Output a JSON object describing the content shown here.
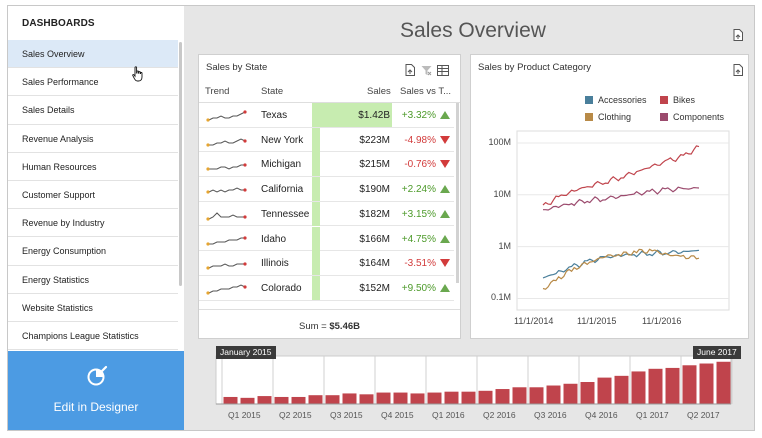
{
  "sidebar": {
    "title": "DASHBOARDS",
    "items": [
      {
        "label": "Sales Overview",
        "selected": true
      },
      {
        "label": "Sales Performance",
        "selected": false
      },
      {
        "label": "Sales Details",
        "selected": false
      },
      {
        "label": "Revenue Analysis",
        "selected": false
      },
      {
        "label": "Human Resources",
        "selected": false
      },
      {
        "label": "Customer Support",
        "selected": false
      },
      {
        "label": "Revenue by Industry",
        "selected": false
      },
      {
        "label": "Energy Consumption",
        "selected": false
      },
      {
        "label": "Energy Statistics",
        "selected": false
      },
      {
        "label": "Website Statistics",
        "selected": false
      },
      {
        "label": "Champions League Statistics",
        "selected": false
      }
    ],
    "designer_label": "Edit in Designer",
    "designer_icon": "designer-icon"
  },
  "header": {
    "title": "Sales Overview",
    "export_icon": "export-icon"
  },
  "colors": {
    "accent": "#4c9be3",
    "selected_item": "#dce9f7",
    "bar_fill": "#c7ecb0",
    "positive": "#4d9a2a",
    "negative": "#d23b3b",
    "accessories": "#4a7f9b",
    "bikes": "#c0444c",
    "clothing": "#b88a47",
    "components": "#9b4a6d",
    "range_bar": "#c0444c"
  },
  "state_grid": {
    "title": "Sales by State",
    "columns": {
      "trend": "Trend",
      "state": "State",
      "sales": "Sales",
      "sales_vs_target": "Sales vs T..."
    },
    "rows": [
      {
        "state": "Texas",
        "sales": "$1.42B",
        "pct": "+3.32%",
        "dir": "up",
        "value": 1.42,
        "spark": [
          5,
          4,
          4,
          3,
          4,
          4,
          3,
          3,
          2,
          1
        ]
      },
      {
        "state": "New York",
        "sales": "$223M",
        "pct": "-4.98%",
        "dir": "down",
        "value": 0.223,
        "spark": [
          5,
          5,
          4,
          4,
          3,
          4,
          4,
          3,
          2,
          3
        ]
      },
      {
        "state": "Michigan",
        "sales": "$215M",
        "pct": "-0.76%",
        "dir": "down",
        "value": 0.215,
        "spark": [
          5,
          5,
          5,
          4,
          4,
          5,
          4,
          4,
          3,
          3
        ]
      },
      {
        "state": "California",
        "sales": "$190M",
        "pct": "+2.24%",
        "dir": "up",
        "value": 0.19,
        "spark": [
          4,
          3,
          4,
          3,
          4,
          3,
          3,
          2,
          3,
          3
        ]
      },
      {
        "state": "Tennessee",
        "sales": "$182M",
        "pct": "+3.15%",
        "dir": "up",
        "value": 0.182,
        "spark": [
          5,
          4,
          2,
          4,
          4,
          4,
          3,
          4,
          4,
          4
        ]
      },
      {
        "state": "Idaho",
        "sales": "$166M",
        "pct": "+4.75%",
        "dir": "up",
        "value": 0.166,
        "spark": [
          5,
          5,
          4,
          4,
          4,
          3,
          3,
          3,
          2,
          2
        ]
      },
      {
        "state": "Illinois",
        "sales": "$164M",
        "pct": "-3.51%",
        "dir": "down",
        "value": 0.164,
        "spark": [
          5,
          4,
          4,
          4,
          3,
          4,
          4,
          3,
          3,
          3
        ]
      },
      {
        "state": "Colorado",
        "sales": "$152M",
        "pct": "+9.50%",
        "dir": "up",
        "value": 0.152,
        "spark": [
          5,
          4,
          4,
          3,
          3,
          3,
          2,
          2,
          1,
          2
        ]
      }
    ],
    "footer_label": "Sum = ",
    "footer_value": "$5.46B"
  },
  "chart_data": [
    {
      "type": "line",
      "title": "Sales by Product Category",
      "y_scale": "log",
      "yticks": [
        "0.1M",
        "1M",
        "10M",
        "100M"
      ],
      "ytick_values": [
        100000,
        1000000,
        10000000,
        100000000
      ],
      "xticks": [
        "11/1/2014",
        "11/1/2015",
        "11/1/2016"
      ],
      "x": [
        "2014-11",
        "2015-02",
        "2015-05",
        "2015-08",
        "2015-11",
        "2016-02",
        "2016-05",
        "2016-08",
        "2016-11",
        "2017-02",
        "2017-05"
      ],
      "legend": {
        "placement": "top",
        "entries": [
          "Accessories",
          "Bikes",
          "Clothing",
          "Components"
        ]
      },
      "grid": "horizontal",
      "series": [
        {
          "name": "Accessories",
          "values": [
            250000,
            320000,
            420000,
            520000,
            620000,
            680000,
            720000,
            760000,
            780000,
            800000,
            850000
          ]
        },
        {
          "name": "Bikes",
          "values": [
            6000000,
            9000000,
            12000000,
            15000000,
            18000000,
            22000000,
            28000000,
            35000000,
            45000000,
            55000000,
            85000000
          ]
        },
        {
          "name": "Clothing",
          "values": [
            150000,
            250000,
            380000,
            500000,
            650000,
            700000,
            800000,
            850000,
            700000,
            650000,
            600000
          ]
        },
        {
          "name": "Components",
          "values": [
            5000000,
            6000000,
            7000000,
            8000000,
            8500000,
            9500000,
            10500000,
            11500000,
            12500000,
            13000000,
            13500000
          ]
        }
      ]
    },
    {
      "type": "bar",
      "title": "",
      "categories": [
        "Jan 2015",
        "Feb 2015",
        "Mar 2015",
        "Apr 2015",
        "May 2015",
        "Jun 2015",
        "Jul 2015",
        "Aug 2015",
        "Sep 2015",
        "Oct 2015",
        "Nov 2015",
        "Dec 2015",
        "Jan 2016",
        "Feb 2016",
        "Mar 2016",
        "Apr 2016",
        "May 2016",
        "Jun 2016",
        "Jul 2016",
        "Aug 2016",
        "Sep 2016",
        "Oct 2016",
        "Nov 2016",
        "Dec 2016",
        "Jan 2017",
        "Feb 2017",
        "Mar 2017",
        "Apr 2017",
        "May 2017",
        "Jun 2017"
      ],
      "values": [
        8,
        7,
        9,
        8,
        8,
        10,
        10,
        12,
        11,
        13,
        13,
        12,
        13,
        14,
        14,
        15,
        17,
        19,
        19,
        21,
        23,
        25,
        30,
        32,
        37,
        40,
        41,
        44,
        46,
        48
      ],
      "xticks": [
        "Q1 2015",
        "Q2 2015",
        "Q3 2015",
        "Q4 2015",
        "Q1 2016",
        "Q2 2016",
        "Q3 2016",
        "Q4 2016",
        "Q1 2017",
        "Q2 2017"
      ],
      "range_start": "January 2015",
      "range_end": "June 2017"
    }
  ]
}
